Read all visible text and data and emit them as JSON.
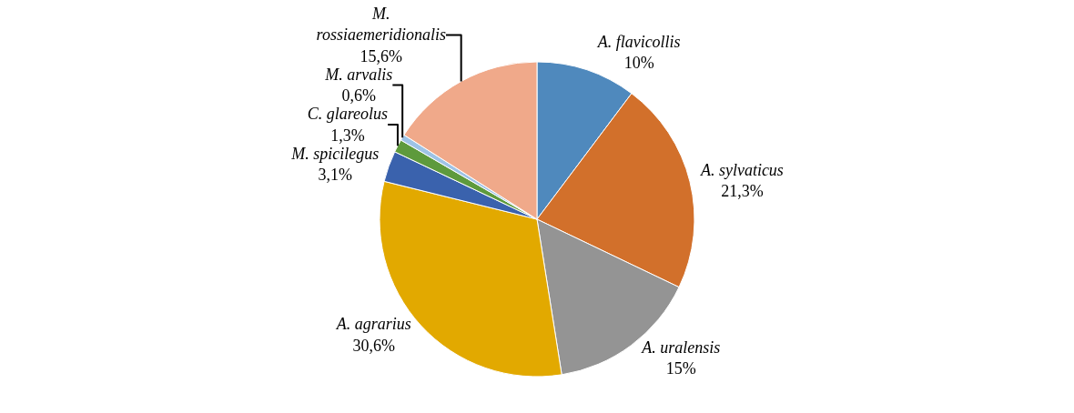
{
  "chart_data": {
    "type": "pie",
    "categories": [
      "A. flavicollis",
      "A. sylvaticus",
      "A. uralensis",
      "A. agrarius",
      "M. spicilegus",
      "C. glareolus",
      "M. arvalis",
      "M. rossiaemeridionalis"
    ],
    "values": [
      10,
      21.3,
      15,
      30.6,
      3.1,
      1.3,
      0.6,
      15.6
    ],
    "value_labels": [
      "10%",
      "21,3%",
      "15%",
      "30,6%",
      "3,1%",
      "1,3%",
      "0,6%",
      "15,6%"
    ],
    "colors": [
      "#4f89bd",
      "#d2702b",
      "#949494",
      "#e2a900",
      "#3a62ad",
      "#5e9a3c",
      "#9ec3e6",
      "#f0a98a"
    ],
    "legend": false
  }
}
